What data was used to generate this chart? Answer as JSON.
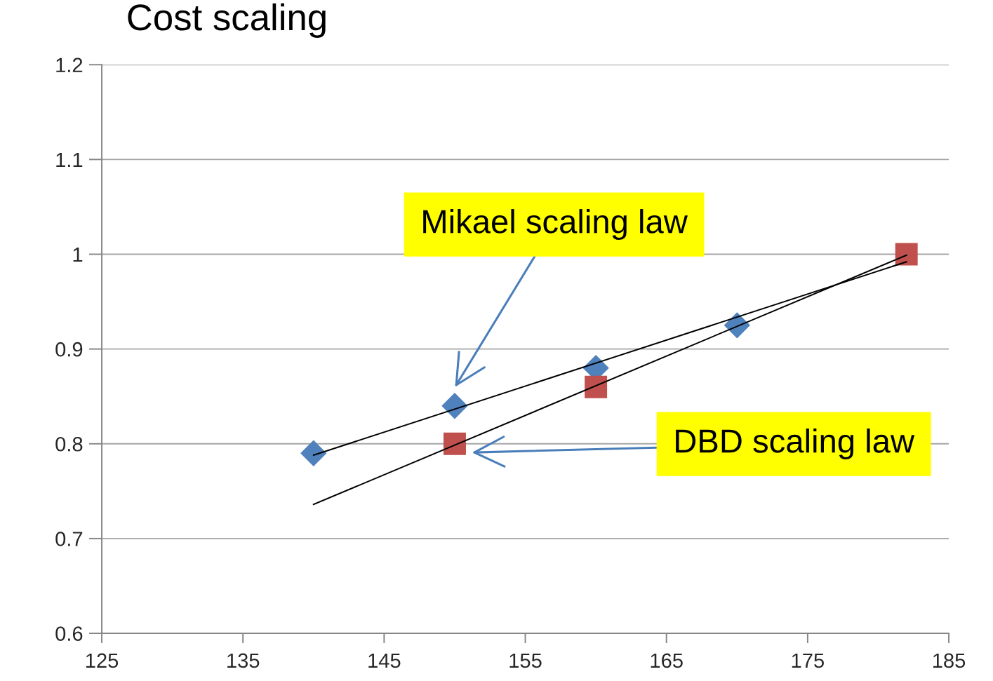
{
  "chart_data": {
    "type": "scatter",
    "title": "Cost scaling",
    "series": [
      {
        "color": "#4f81bd",
        "marker": "diamond",
        "x": [
          140,
          150,
          160,
          170
        ],
        "values": [
          0.79,
          0.84,
          0.88,
          0.925
        ]
      },
      {
        "color": "#c0504d",
        "marker": "square",
        "x": [
          150,
          160,
          182
        ],
        "values": [
          0.8,
          0.86,
          1
        ]
      },
      {
        "type": "line",
        "color": "#000000",
        "marker": "none",
        "x": [
          140,
          182
        ],
        "values": [
          0.788,
          0.992
        ]
      },
      {
        "type": "line",
        "color": "#000000",
        "marker": "none",
        "x": [
          140,
          182
        ],
        "values": [
          0.736,
          0.999
        ]
      }
    ],
    "annotations": [
      "Mikael scaling law",
      "DBD scaling law"
    ],
    "xlim": [
      125,
      185
    ],
    "xticks": [
      125,
      135,
      145,
      155,
      165,
      175,
      185
    ],
    "ylim": [
      0.6,
      1.2
    ],
    "yticks": [
      0.6,
      0.7,
      0.8,
      0.9,
      1,
      1.1,
      1.2
    ],
    "grid": "y"
  }
}
